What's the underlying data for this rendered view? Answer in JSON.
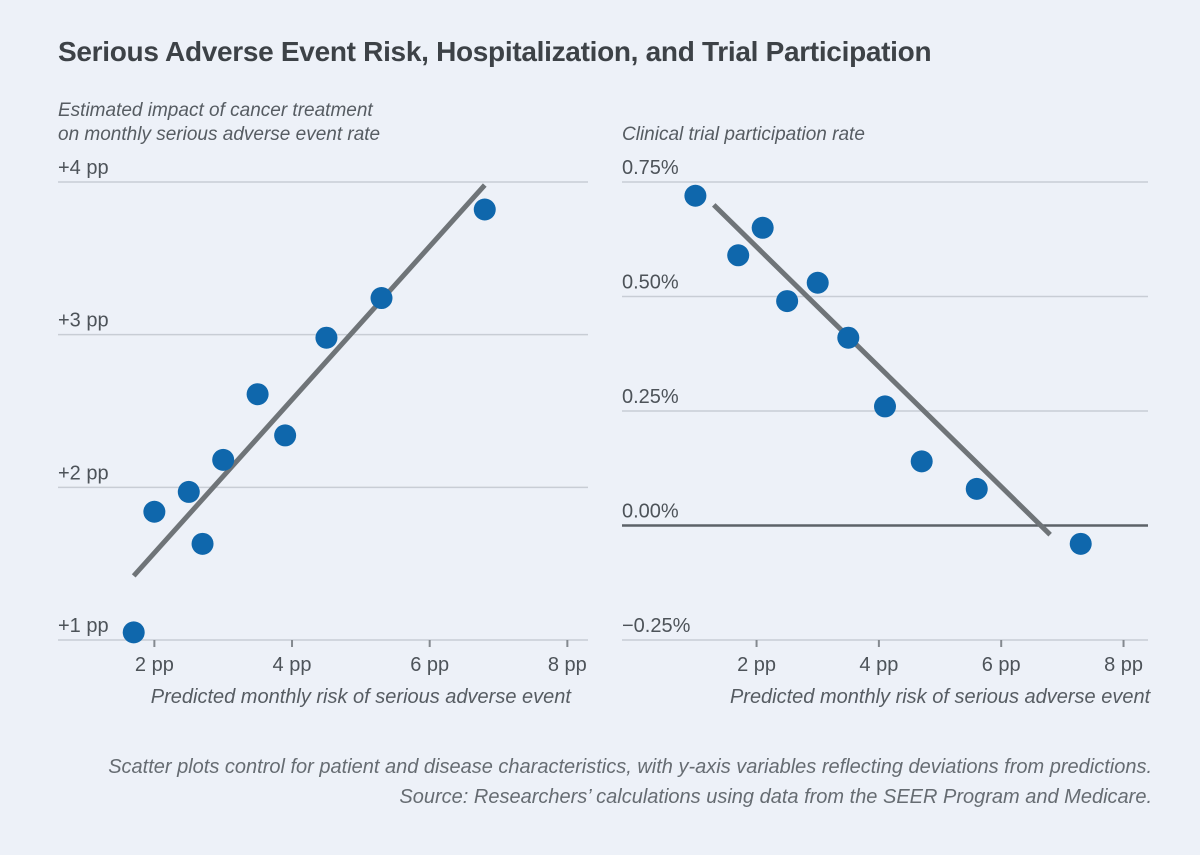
{
  "figure": {
    "title": "Serious Adverse Event Risk, Hospitalization, and Trial Participation",
    "footnote_line1": "Scatter plots control for patient and disease characteristics, with y-axis variables reflecting deviations from predictions.",
    "footnote_line2": "Source: Researchers’ calculations using data from the SEER Program and Medicare."
  },
  "colors": {
    "background": "#edf1f8",
    "point": "#0f67ac",
    "trend": "#6f7478",
    "gridline": "#c8cdd5",
    "zero_line": "#5d6268",
    "tick": "#84898f",
    "title_text": "#3d4247",
    "label_text": "#4d5359",
    "axis_title_text": "#565c62",
    "footnote_text": "#666c72"
  },
  "chart_data": [
    {
      "type": "scatter",
      "y_axis_title_lines": [
        "Estimated impact of cancer treatment",
        "on monthly serious adverse event rate"
      ],
      "xlabel": "Predicted monthly risk of serious adverse event",
      "xlim": [
        0.6,
        8.3
      ],
      "ylim": [
        1,
        4
      ],
      "xticks": [
        2,
        4,
        6,
        8
      ],
      "xtick_labels": [
        "2 pp",
        "4 pp",
        "6 pp",
        "8 pp"
      ],
      "yticks": [
        1,
        2,
        3,
        4
      ],
      "ytick_labels": [
        "+1 pp",
        "+2 pp",
        "+3 pp",
        "+4 pp"
      ],
      "dark_gridline_at": null,
      "grid": true,
      "legend": null,
      "points": [
        [
          1.7,
          1.05
        ],
        [
          2.0,
          1.84
        ],
        [
          2.5,
          1.97
        ],
        [
          2.7,
          1.63
        ],
        [
          3.0,
          2.18
        ],
        [
          3.5,
          2.61
        ],
        [
          3.9,
          2.34
        ],
        [
          4.5,
          2.98
        ],
        [
          5.3,
          3.24
        ],
        [
          6.8,
          3.82
        ]
      ],
      "trend_line": {
        "x1": 1.7,
        "y1": 1.42,
        "x2": 6.8,
        "y2": 3.98
      }
    },
    {
      "type": "scatter",
      "y_axis_title_lines": [
        "Clinical trial participation rate"
      ],
      "xlabel": "Predicted monthly risk of serious adverse event",
      "xlim": [
        -0.2,
        8.4
      ],
      "ylim": [
        -0.25,
        0.75
      ],
      "xticks": [
        2,
        4,
        6,
        8
      ],
      "xtick_labels": [
        "2 pp",
        "4 pp",
        "6 pp",
        "8 pp"
      ],
      "yticks": [
        -0.25,
        0,
        0.25,
        0.5,
        0.75
      ],
      "ytick_labels": [
        "−0.25%",
        "0.00%",
        "0.25%",
        "0.50%",
        "0.75%"
      ],
      "dark_gridline_at": 0,
      "grid": true,
      "legend": null,
      "points": [
        [
          1.0,
          0.72
        ],
        [
          1.7,
          0.59
        ],
        [
          2.1,
          0.65
        ],
        [
          2.5,
          0.49
        ],
        [
          3.0,
          0.53
        ],
        [
          3.5,
          0.41
        ],
        [
          4.1,
          0.26
        ],
        [
          4.7,
          0.14
        ],
        [
          5.6,
          0.08
        ],
        [
          7.3,
          -0.04
        ]
      ],
      "trend_line": {
        "x1": 1.3,
        "y1": 0.7,
        "x2": 6.8,
        "y2": -0.02
      }
    }
  ]
}
